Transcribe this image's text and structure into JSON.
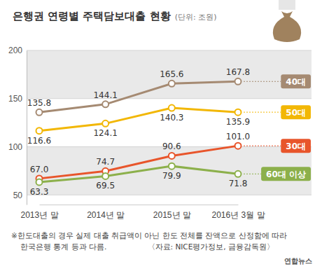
{
  "chart_data": {
    "type": "line",
    "title": "은행권 연령별 주택담보대출 현황",
    "subtitle": "(단위: 조원)",
    "categories": [
      "2013년 말",
      "2014년 말",
      "2015년 말",
      "2016년 3월 말"
    ],
    "series": [
      {
        "name": "40대",
        "color": "#a58a72",
        "values": [
          135.8,
          144.1,
          165.6,
          167.8
        ],
        "value_labels": [
          "135.8",
          "144.1",
          "165.6",
          "167.8"
        ]
      },
      {
        "name": "50대",
        "color": "#f2b705",
        "values": [
          116.6,
          124.1,
          140.3,
          135.9
        ],
        "value_labels": [
          "116.6",
          "124.1",
          "140.3",
          "135.9"
        ]
      },
      {
        "name": "30대",
        "color": "#e8552b",
        "values": [
          67.0,
          74.7,
          90.6,
          101.0
        ],
        "value_labels": [
          "67.0",
          "74.7",
          "90.6",
          "101.0"
        ]
      },
      {
        "name": "60대 이상",
        "color": "#8cb04b",
        "values": [
          63.3,
          69.5,
          79.9,
          71.8
        ],
        "value_labels": [
          "63.3",
          "69.5",
          "79.9",
          "71.8"
        ]
      }
    ],
    "ylim": [
      40,
      200
    ],
    "yticks": [
      50,
      100,
      150,
      200
    ],
    "grid": true,
    "marker": "circle",
    "data_labels": true,
    "notes": [
      "※한도대출의 경우 실제 대출 취급액이 아닌 한도 전체를 잔액으로 산정함에 따라",
      "한국은행 통계 등과 다름."
    ],
    "source": "〈자료: NICE평가정보, 금융감독원〉",
    "credit": "연합뉴스"
  }
}
